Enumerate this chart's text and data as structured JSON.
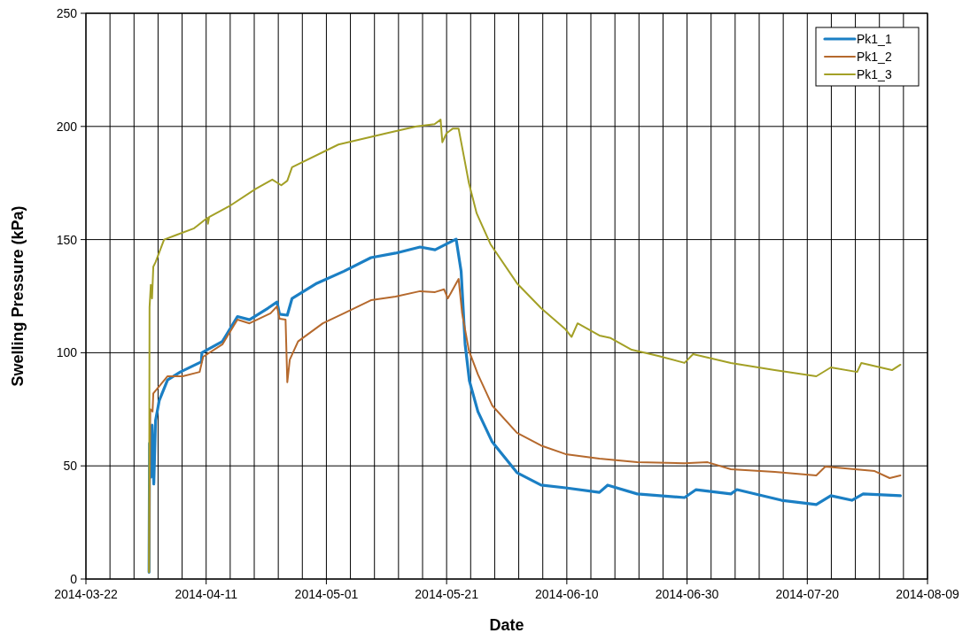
{
  "chart_data": {
    "type": "line",
    "xlabel": "Date",
    "ylabel": "Swelling Pressure (kPa)",
    "xlim": [
      "2014-03-22",
      "2014-08-09"
    ],
    "ylim": [
      0,
      250
    ],
    "yticks": [
      0,
      50,
      100,
      150,
      200,
      250
    ],
    "xticks": [
      "2014-03-22",
      {
        "value": "2014-03-26",
        "label": null
      },
      {
        "value": "2014-03-30",
        "label": null
      },
      {
        "value": "2014-04-03",
        "label": null
      },
      {
        "value": "2014-04-07",
        "label": null
      },
      "2014-04-11",
      {
        "value": "2014-04-15",
        "label": null
      },
      {
        "value": "2014-04-19",
        "label": null
      },
      {
        "value": "2014-04-23",
        "label": null
      },
      {
        "value": "2014-04-27",
        "label": null
      },
      "2014-05-01",
      {
        "value": "2014-05-05",
        "label": null
      },
      {
        "value": "2014-05-09",
        "label": null
      },
      {
        "value": "2014-05-13",
        "label": null
      },
      {
        "value": "2014-05-17",
        "label": null
      },
      "2014-05-21",
      {
        "value": "2014-05-25",
        "label": null
      },
      {
        "value": "2014-05-29",
        "label": null
      },
      {
        "value": "2014-06-02",
        "label": null
      },
      {
        "value": "2014-06-06",
        "label": null
      },
      "2014-06-10",
      {
        "value": "2014-06-14",
        "label": null
      },
      {
        "value": "2014-06-18",
        "label": null
      },
      {
        "value": "2014-06-22",
        "label": null
      },
      {
        "value": "2014-06-26",
        "label": null
      },
      "2014-06-30",
      {
        "value": "2014-07-04",
        "label": null
      },
      {
        "value": "2014-07-08",
        "label": null
      },
      {
        "value": "2014-07-12",
        "label": null
      },
      {
        "value": "2014-07-16",
        "label": null
      },
      "2014-07-20",
      {
        "value": "2014-07-24",
        "label": null
      },
      {
        "value": "2014-07-28",
        "label": null
      },
      {
        "value": "2014-08-01",
        "label": null
      },
      {
        "value": "2014-08-05",
        "label": null
      },
      "2014-08-09"
    ],
    "grid": true,
    "legend": "top right",
    "marker": "none",
    "line_style": "solid",
    "series": [
      {
        "name": "Pk1_1",
        "color": "#1b7fc4",
        "x": [
          "2014-04-01T12:00",
          "2014-04-01T14:00",
          "2014-04-01T19:00",
          "2014-04-02",
          "2014-04-02T07:00",
          "2014-04-02T14:00",
          "2014-04-03T05:00",
          "2014-04-04T14:00",
          "2014-04-06T17:00",
          "2014-04-10T05:00",
          "2014-04-10T07:00",
          "2014-04-13T17:00",
          "2014-04-16T05:00",
          "2014-04-18T05:00",
          "2014-04-21T07:00",
          "2014-04-22T19:00",
          "2014-04-23T05:00",
          "2014-04-24T12:00",
          "2014-04-25T07:00",
          "2014-04-29T10:00",
          "2014-05-03T22:00",
          "2014-05-08T10:00",
          "2014-05-12T12:00",
          "2014-05-16T14:00",
          "2014-05-19T02:00",
          "2014-05-22T14:00",
          "2014-05-23T10:00",
          "2014-05-24T02:00",
          "2014-05-24T19:00",
          "2014-05-26T05:00",
          "2014-05-28T14:00",
          "2014-06-01T17:00",
          "2014-06-05T17:00",
          "2014-06-09T19:00",
          "2014-06-15T10:00",
          "2014-06-16T19:00",
          "2014-06-21T17:00",
          "2014-06-29T14:00",
          "2014-07-01T12:00",
          "2014-07-07T07:00",
          "2014-07-08T07:00",
          "2014-07-15T17:00",
          "2014-07-21T12:00",
          "2014-07-23T22:00",
          "2014-07-27T10:00",
          "2014-07-29T07:00",
          "2014-08-04T12:00"
        ],
        "values": [
          3,
          60,
          45,
          68,
          42,
          70,
          79,
          88,
          91.5,
          96,
          100,
          105,
          116,
          114.6,
          119.7,
          122.4,
          117,
          116.6,
          124,
          130.7,
          136,
          142,
          144,
          146.7,
          145.5,
          150.2,
          136,
          103.7,
          87.6,
          74,
          60.6,
          47,
          41.5,
          40.3,
          38.3,
          41.5,
          37.6,
          36,
          39.5,
          37.6,
          39.5,
          34.8,
          32.9,
          36.8,
          34.8,
          37.6,
          36.8
        ]
      },
      {
        "name": "Pk1_2",
        "color": "#b5692d",
        "x": [
          "2014-04-01T12:00",
          "2014-04-01T17:00",
          "2014-04-02T02:00",
          "2014-04-02T05:00",
          "2014-04-04T14:00",
          "2014-04-07T02:00",
          "2014-04-09T22:00",
          "2014-04-10T12:00",
          "2014-04-13T17:00",
          "2014-04-16T05:00",
          "2014-04-18T05:00",
          "2014-04-21T17:00",
          "2014-04-22T19:00",
          "2014-04-23T05:00",
          "2014-04-24T05:00",
          "2014-04-24T12:00",
          "2014-04-24T22:00",
          "2014-04-26T07:00",
          "2014-04-30T10:00",
          "2014-05-03T22:00",
          "2014-05-08T10:00",
          "2014-05-12T12:00",
          "2014-05-16T14:00",
          "2014-05-19T02:00",
          "2014-05-20T14:00",
          "2014-05-21T05:00",
          "2014-05-23",
          "2014-05-23T14:00",
          "2014-05-24T17:00",
          "2014-05-26T05:00",
          "2014-05-28T14:00",
          "2014-06-01T17:00",
          "2014-06-05T17:00",
          "2014-06-09T19:00",
          "2014-06-15T10:00",
          "2014-06-21T17:00",
          "2014-06-29T14:00",
          "2014-07-03T10:00",
          "2014-07-07T07:00",
          "2014-07-14T14:00",
          "2014-07-21T12:00",
          "2014-07-23",
          "2014-07-31T05:00",
          "2014-08-02T17:00",
          "2014-08-04T12:00"
        ],
        "values": [
          3,
          75,
          74,
          82,
          89.6,
          89.6,
          91.5,
          98.2,
          103.7,
          114.6,
          113,
          117.4,
          120.5,
          115,
          114.6,
          87,
          97,
          105,
          113,
          117.4,
          123.2,
          124.8,
          127.2,
          126.8,
          128,
          124,
          132.6,
          117.4,
          101,
          90.4,
          76.7,
          64.6,
          59,
          55.2,
          53.2,
          51.6,
          51.2,
          51.6,
          48.5,
          47.3,
          45.8,
          49.7,
          47.7,
          44.6,
          45.8
        ]
      },
      {
        "name": "Pk1_3",
        "color": "#a3a026",
        "x": [
          "2014-04-01T12:00",
          "2014-04-01T14:00",
          "2014-04-01T19:00",
          "2014-04-02",
          "2014-04-02T05:00",
          "2014-04-02T14:00",
          "2014-04-04",
          "2014-04-06",
          "2014-04-09",
          "2014-04-11T05:00",
          "2014-04-11T07:00",
          "2014-04-11T12:00",
          "2014-04-15",
          "2014-04-19T07:00",
          "2014-04-22",
          "2014-04-23T12:00",
          "2014-04-24T12:00",
          "2014-04-25T07:00",
          "2014-05-03",
          "2014-05-11",
          "2014-05-16",
          "2014-05-19",
          "2014-05-20",
          "2014-05-20T07:00",
          "2014-05-21",
          "2014-05-22",
          "2014-05-23",
          "2014-05-24",
          "2014-05-24T17:00",
          "2014-05-26",
          "2014-05-28T07:00",
          "2014-06-01T17:00",
          "2014-06-05T17:00",
          "2014-06-09T19:00",
          "2014-06-10T19:00",
          "2014-06-11T19:00",
          "2014-06-15T10:00",
          "2014-06-17T07:00",
          "2014-06-20T19:00",
          "2014-06-25T05:00",
          "2014-06-29T14:00",
          "2014-07-01",
          "2014-07-07T07:00",
          "2014-07-14T14:00",
          "2014-07-21T12:00",
          "2014-07-23T22:00",
          "2014-07-28T07:00",
          "2014-07-29",
          "2014-08-03T02:00",
          "2014-08-04T12:00"
        ],
        "values": [
          3,
          120,
          130,
          124,
          138,
          140,
          150,
          152,
          155,
          159.6,
          157,
          160,
          165,
          172.5,
          176.5,
          174,
          176,
          182,
          192,
          197,
          200,
          201,
          203,
          193,
          197,
          199,
          199,
          185,
          175,
          161.6,
          148,
          130.7,
          119.7,
          110.3,
          107,
          113,
          107.6,
          106.5,
          101.3,
          98.6,
          95.5,
          99.4,
          95.5,
          92.3,
          89.6,
          93.5,
          91.5,
          95.5,
          92.3,
          94.7
        ]
      }
    ]
  }
}
